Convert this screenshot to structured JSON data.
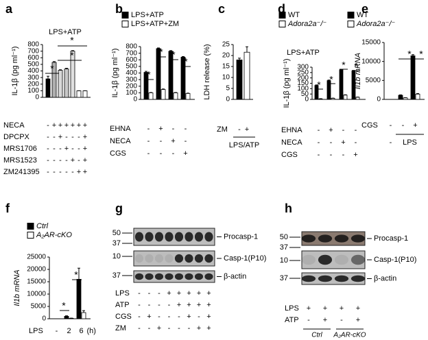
{
  "figure": {
    "panel_letters": [
      "a",
      "b",
      "c",
      "d",
      "e",
      "f",
      "g",
      "h"
    ]
  },
  "chart_data": [
    {
      "type": "bar",
      "title": "LPS+ATP",
      "ylabel": "IL-1β (pg ml⁻¹)",
      "ylim": [
        0,
        800
      ],
      "yticks": [
        0,
        100,
        200,
        300,
        400,
        500,
        600,
        700,
        800
      ],
      "series": [
        {
          "colors": [
            "#000000",
            "#b0b0b0",
            "#d8d8d8",
            "#c8c8c8",
            "#e0e0e0",
            "#ffffff",
            "#ffffff"
          ],
          "values": [
            280,
            530,
            410,
            430,
            700,
            100,
            100
          ],
          "errors": [
            40,
            12,
            8,
            10,
            8,
            0,
            0
          ]
        }
      ],
      "conditions": [
        {
          "label": "NECA",
          "signs": [
            "-",
            "+",
            "+",
            "+",
            "+",
            "+",
            "+"
          ]
        },
        {
          "label": "DPCPX",
          "signs": [
            "-",
            "-",
            "+",
            "-",
            "-",
            "-",
            "+"
          ]
        },
        {
          "label": "MRS1706",
          "signs": [
            "-",
            "-",
            "-",
            "+",
            "-",
            "-",
            "+"
          ]
        },
        {
          "label": "MRS1523",
          "signs": [
            "-",
            "-",
            "-",
            "-",
            "+",
            "-",
            "+"
          ]
        },
        {
          "label": "ZM241395",
          "signs": [
            "-",
            "-",
            "-",
            "-",
            "-",
            "+",
            "+"
          ]
        }
      ],
      "annotations": [
        "*",
        "*",
        "*"
      ]
    },
    {
      "type": "bar",
      "ylabel": "IL-1β (pg ml⁻¹)",
      "ylim": [
        0,
        800
      ],
      "yticks": [
        0,
        100,
        200,
        300,
        400,
        500,
        600,
        700,
        800
      ],
      "series": [
        {
          "name": "LPS+ATP",
          "color": "#000000",
          "values": [
            410,
            770,
            730,
            640
          ],
          "errors": [
            15,
            10,
            10,
            10
          ]
        },
        {
          "name": "LPS+ATP+ZM",
          "color": "#ffffff",
          "values": [
            100,
            150,
            100,
            90
          ],
          "errors": [
            5,
            8,
            5,
            5
          ]
        }
      ],
      "conditions": [
        {
          "label": "EHNA",
          "signs": [
            "-",
            "+",
            "-",
            "-"
          ]
        },
        {
          "label": "NECA",
          "signs": [
            "-",
            "-",
            "+",
            "-"
          ]
        },
        {
          "label": "CGS",
          "signs": [
            "-",
            "-",
            "-",
            "+"
          ]
        }
      ],
      "annotations": [
        "*",
        "*",
        "*",
        "*"
      ]
    },
    {
      "type": "bar",
      "ylabel": "LDH release (%)",
      "ylim": [
        0,
        25
      ],
      "yticks": [
        0,
        5,
        10,
        15,
        20,
        25
      ],
      "series": [
        {
          "colors": [
            "#000000",
            "#ffffff"
          ],
          "values": [
            18,
            21.5
          ],
          "errors": [
            0.8,
            2.5
          ]
        }
      ],
      "conditions": [
        {
          "label": "ZM",
          "signs": [
            "-",
            "+"
          ]
        }
      ],
      "group_label": "LPS/ATP"
    },
    {
      "type": "bar",
      "title": "LPS+ATP",
      "ylabel": "IL-1β (pg ml⁻¹)",
      "ylim": [
        0,
        300
      ],
      "yticks": [
        0,
        50,
        100,
        150,
        200,
        250,
        300
      ],
      "series": [
        {
          "name": "WT",
          "color": "#000000",
          "values": [
            130,
            175,
            275,
            265
          ],
          "errors": [
            5,
            5,
            5,
            5
          ]
        },
        {
          "name": "Adora2a⁻/⁻",
          "color": "#ffffff",
          "values": [
            5,
            10,
            40,
            20
          ],
          "errors": [
            2,
            2,
            3,
            2
          ]
        }
      ],
      "conditions": [
        {
          "label": "EHNA",
          "signs": [
            "-",
            "+",
            "-",
            "-"
          ]
        },
        {
          "label": "NECA",
          "signs": [
            "-",
            "-",
            "+",
            "-"
          ]
        },
        {
          "label": "CGS",
          "signs": [
            "-",
            "-",
            "-",
            "+"
          ]
        }
      ],
      "annotations": [
        "*",
        "*",
        "*",
        "*"
      ]
    },
    {
      "type": "bar",
      "ylabel": "Il1b mRNA",
      "ylim": [
        0,
        15000
      ],
      "yticks": [
        0,
        5000,
        10000,
        15000
      ],
      "series": [
        {
          "name": "WT",
          "color": "#000000",
          "values": [
            0,
            1100,
            11500
          ],
          "errors": [
            0,
            100,
            300
          ]
        },
        {
          "name": "Adora2a⁻/⁻",
          "color": "#ffffff",
          "values": [
            0,
            400,
            1400
          ],
          "errors": [
            0,
            50,
            150
          ]
        }
      ],
      "conditions": [
        {
          "label": "CGS",
          "signs": [
            "-",
            "-",
            "+"
          ]
        }
      ],
      "group_signs": [
        "-"
      ],
      "group_label": "LPS",
      "annotations": [
        "*",
        "*"
      ]
    },
    {
      "type": "bar",
      "ylabel": "Il1b mRNA",
      "ylim": [
        0,
        25000
      ],
      "yticks": [
        0,
        5000,
        10000,
        15000,
        20000,
        25000
      ],
      "categories": [
        "-",
        "2",
        "6"
      ],
      "xlabel": "LPS",
      "xunit": "(h)",
      "series": [
        {
          "name": "Ctrl",
          "color": "#000000",
          "values": [
            0,
            1000,
            16000
          ],
          "errors": [
            0,
            200,
            4500
          ]
        },
        {
          "name": "A₂AR-cKO",
          "color": "#ffffff",
          "values": [
            0,
            200,
            2500
          ],
          "errors": [
            0,
            50,
            800
          ]
        }
      ],
      "annotations": [
        "*",
        "*"
      ]
    }
  ],
  "blots": [
    {
      "markers": [
        "50",
        "37",
        "10",
        "37"
      ],
      "bands": [
        "Procasp-1",
        "Casp-1(P10)",
        "β-actin"
      ],
      "conditions": [
        {
          "label": "LPS",
          "signs": [
            "-",
            "-",
            "-",
            "+",
            "+",
            "+",
            "+",
            "+"
          ]
        },
        {
          "label": "ATP",
          "signs": [
            "-",
            "-",
            "-",
            "-",
            "+",
            "+",
            "+",
            "+"
          ]
        },
        {
          "label": "CGS",
          "signs": [
            "-",
            "+",
            "-",
            "-",
            "-",
            "+",
            "-",
            "+"
          ]
        },
        {
          "label": "ZM",
          "signs": [
            "-",
            "-",
            "+",
            "-",
            "-",
            "-",
            "+",
            "+"
          ]
        }
      ]
    },
    {
      "markers": [
        "50",
        "37",
        "10",
        "37"
      ],
      "bands": [
        "Procasp-1",
        "Casp-1(P10)",
        "β-actin"
      ],
      "conditions": [
        {
          "label": "LPS",
          "signs": [
            "+",
            "+",
            "+",
            "+"
          ]
        },
        {
          "label": "ATP",
          "signs": [
            "-",
            "+",
            "-",
            "+"
          ]
        }
      ],
      "groups": [
        "Ctrl",
        "A₂AR-cKO"
      ]
    }
  ]
}
